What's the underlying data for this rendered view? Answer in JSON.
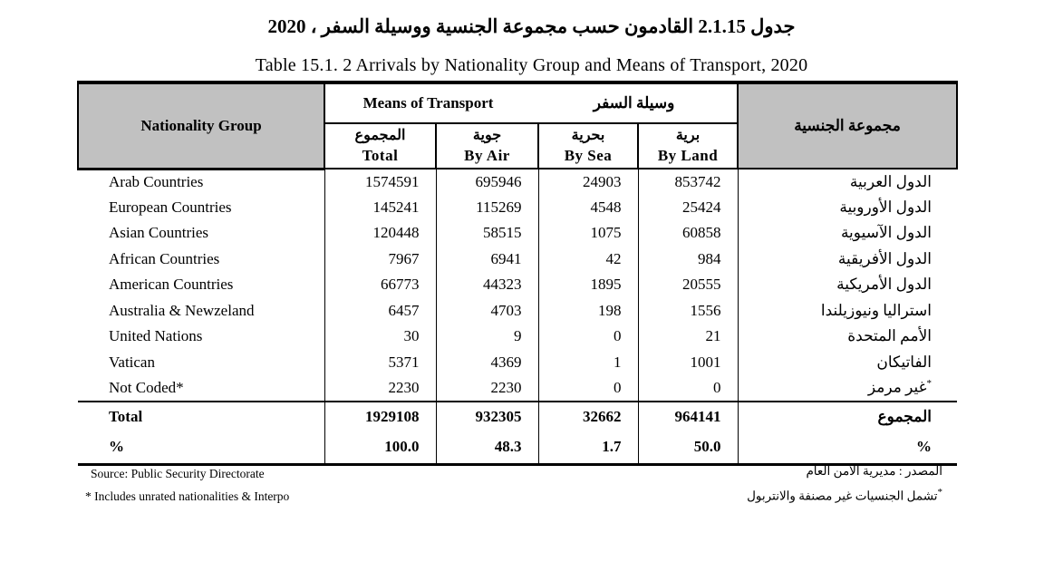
{
  "titles": {
    "arabic": "جدول 2.1.15 القادمون حسب مجموعة الجنسية ووسيلة السفر ، 2020",
    "english": "Table 15.1. 2 Arrivals by Nationality Group and Means of Transport, 2020"
  },
  "table": {
    "header": {
      "nationality_group_en": "Nationality Group",
      "nationality_group_ar": "مجموعة الجنسية",
      "means_banner_en": "Means of Transport",
      "means_banner_ar": "وسيلة السفر",
      "columns": [
        {
          "ar": "المجموع",
          "en": "Total"
        },
        {
          "ar": "جوية",
          "en": "By  Air"
        },
        {
          "ar": "بحرية",
          "en": "By  Sea"
        },
        {
          "ar": "برية",
          "en": "By  Land"
        }
      ]
    },
    "rows": [
      {
        "en": "Arab Countries",
        "total": "1574591",
        "air": "695946",
        "sea": "24903",
        "land": "853742",
        "ar": "الدول العربية"
      },
      {
        "en": "European Countries",
        "total": "145241",
        "air": "115269",
        "sea": "4548",
        "land": "25424",
        "ar": "الدول الأوروبية"
      },
      {
        "en": "Asian Countries",
        "total": "120448",
        "air": "58515",
        "sea": "1075",
        "land": "60858",
        "ar": "الدول الآسيوية"
      },
      {
        "en": "African Countries",
        "total": "7967",
        "air": "6941",
        "sea": "42",
        "land": "984",
        "ar": "الدول الأفريقية"
      },
      {
        "en": "American Countries",
        "total": "66773",
        "air": "44323",
        "sea": "1895",
        "land": "20555",
        "ar": "الدول الأمريكية"
      },
      {
        "en": "Australia & Newzeland",
        "total": "6457",
        "air": "4703",
        "sea": "198",
        "land": "1556",
        "ar": "استراليا ونيوزيلندا"
      },
      {
        "en": "United Nations",
        "total": "30",
        "air": "9",
        "sea": "0",
        "land": "21",
        "ar": "الأمم المتحدة"
      },
      {
        "en": "Vatican",
        "total": "5371",
        "air": "4369",
        "sea": "1",
        "land": "1001",
        "ar": "الفاتيكان"
      },
      {
        "en": "Not Coded*",
        "total": "2230",
        "air": "2230",
        "sea": "0",
        "land": "0",
        "ar": "غير مرمز",
        "ar_sup": "*"
      }
    ],
    "total_row": {
      "en": "Total",
      "total": "1929108",
      "air": "932305",
      "sea": "32662",
      "land": "964141",
      "ar": "المجموع"
    },
    "percent_row": {
      "en": "%",
      "total": "100.0",
      "air": "48.3",
      "sea": "1.7",
      "land": "50.0",
      "ar": "%"
    }
  },
  "footer": {
    "source_en": "Source: Public Security Directorate",
    "source_ar": "المصدر : مديرية الأمن العام",
    "note_en": "* Includes unrated nationalities & Interpo",
    "note_ar": "تشمل الجنسيات غير مصنفة والانتربول",
    "note_ar_sup": "*"
  },
  "colors": {
    "header_bg": "#c1c1c1",
    "border": "#000000",
    "text": "#000000",
    "background": "#ffffff"
  }
}
